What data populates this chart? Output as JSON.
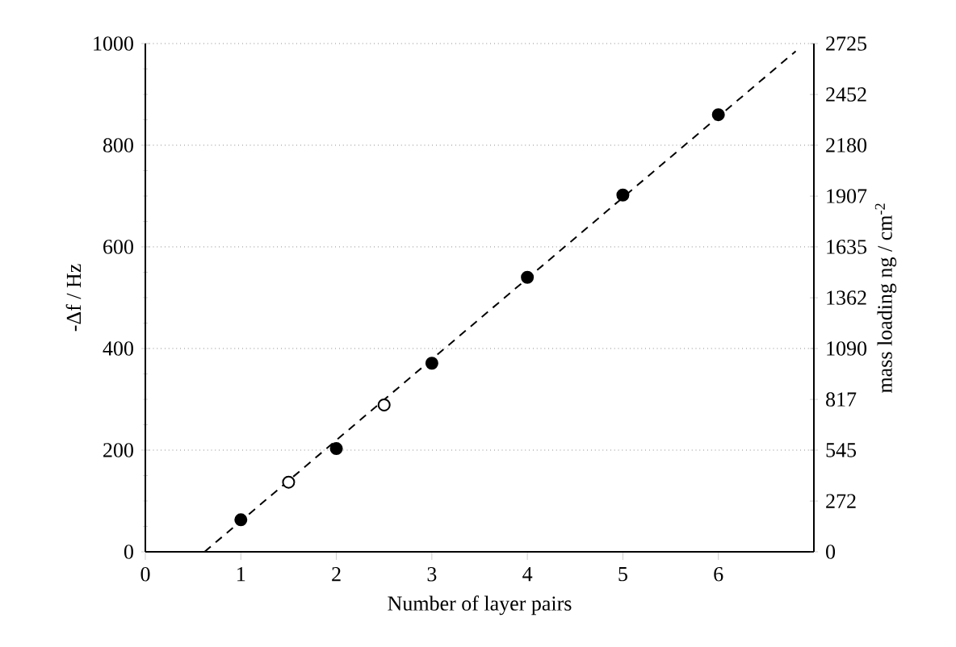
{
  "chart_data": {
    "type": "scatter",
    "xlabel": "Number of layer pairs",
    "ylabel": "-Δf / Hz",
    "y2label": "mass loading  ng / cm$^{-2}$",
    "xlim": [
      0,
      7
    ],
    "xticks": [
      0,
      1,
      2,
      3,
      4,
      5,
      6
    ],
    "ylim": [
      0,
      1000
    ],
    "yticks": [
      0,
      200,
      400,
      600,
      800,
      1000
    ],
    "y2lim": [
      0,
      2725
    ],
    "y2ticks": [
      0,
      272,
      545,
      817,
      1090,
      1362,
      1635,
      1907,
      2180,
      2452,
      2725
    ],
    "grid": "y",
    "marker": "circle",
    "series": [
      {
        "color": "#000000",
        "x": [
          1,
          2,
          3,
          4,
          5,
          6
        ],
        "values": [
          63,
          203,
          371,
          540,
          702,
          860
        ]
      },
      {
        "color": "#ffffff",
        "x": [
          1.5,
          2.5
        ],
        "values": [
          137,
          289
        ]
      },
      {
        "type": "line",
        "line_style": "dashed",
        "marker": "none",
        "color": "#000000",
        "x": [
          0.62,
          6.81
        ],
        "values": [
          0,
          985
        ]
      }
    ]
  }
}
